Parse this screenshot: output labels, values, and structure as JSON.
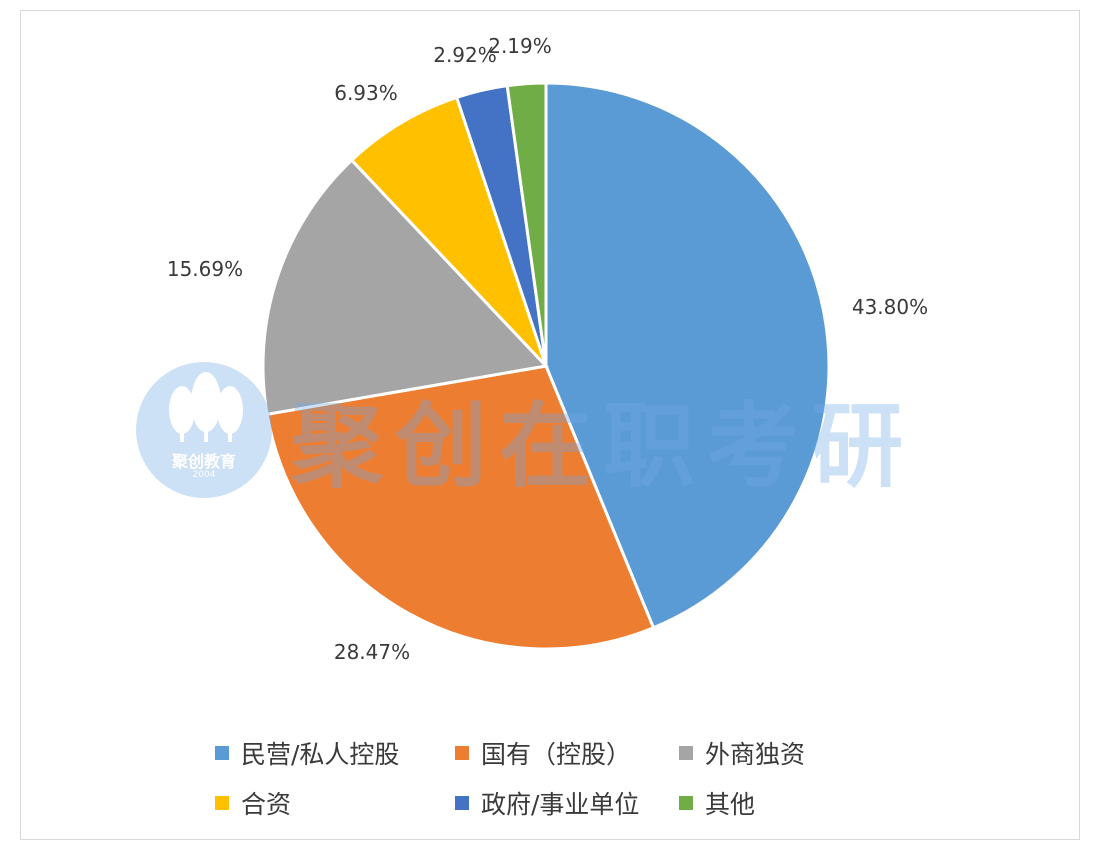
{
  "chart_data": {
    "type": "pie",
    "categories": [
      "民营/私人控股",
      "国有（控股）",
      "外商独资",
      "合资",
      "政府/事业单位",
      "其他"
    ],
    "values": [
      43.8,
      28.47,
      15.69,
      6.93,
      2.92,
      2.19
    ],
    "labels": [
      "43.80%",
      "28.47%",
      "15.69%",
      "6.93%",
      "2.92%",
      "2.19%"
    ],
    "colors": [
      "#5b9bd5",
      "#ed7d31",
      "#a5a5a5",
      "#ffc000",
      "#4472c4",
      "#70ad47"
    ],
    "start_angle_deg": 0,
    "direction": "clockwise",
    "legend_position": "bottom"
  },
  "watermark": {
    "text": "聚创在职考研",
    "logo_text": "聚创教育",
    "logo_year": "2004"
  }
}
